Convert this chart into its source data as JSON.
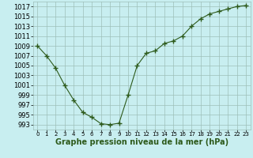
{
  "x": [
    0,
    1,
    2,
    3,
    4,
    5,
    6,
    7,
    8,
    9,
    10,
    11,
    12,
    13,
    14,
    15,
    16,
    17,
    18,
    19,
    20,
    21,
    22,
    23
  ],
  "y": [
    1009.0,
    1007.0,
    1004.5,
    1001.0,
    998.0,
    995.5,
    994.5,
    993.2,
    993.0,
    993.3,
    999.0,
    1005.0,
    1007.5,
    1008.0,
    1009.5,
    1010.0,
    1011.0,
    1013.0,
    1014.5,
    1015.5,
    1016.0,
    1016.5,
    1017.0,
    1017.2
  ],
  "line_color": "#2d5a1b",
  "marker": "+",
  "marker_size": 4,
  "marker_lw": 1.0,
  "line_width": 0.8,
  "bg_color": "#c8eef0",
  "grid_color": "#9dbfb8",
  "xlabel": "Graphe pression niveau de la mer (hPa)",
  "ylim": [
    992,
    1018
  ],
  "xlim": [
    -0.5,
    23.5
  ],
  "yticks": [
    993,
    995,
    997,
    999,
    1001,
    1003,
    1005,
    1007,
    1009,
    1011,
    1013,
    1015,
    1017
  ],
  "xticks": [
    0,
    1,
    2,
    3,
    4,
    5,
    6,
    7,
    8,
    9,
    10,
    11,
    12,
    13,
    14,
    15,
    16,
    17,
    18,
    19,
    20,
    21,
    22,
    23
  ],
  "ytick_fontsize": 6,
  "xtick_fontsize": 5,
  "xlabel_fontsize": 7
}
